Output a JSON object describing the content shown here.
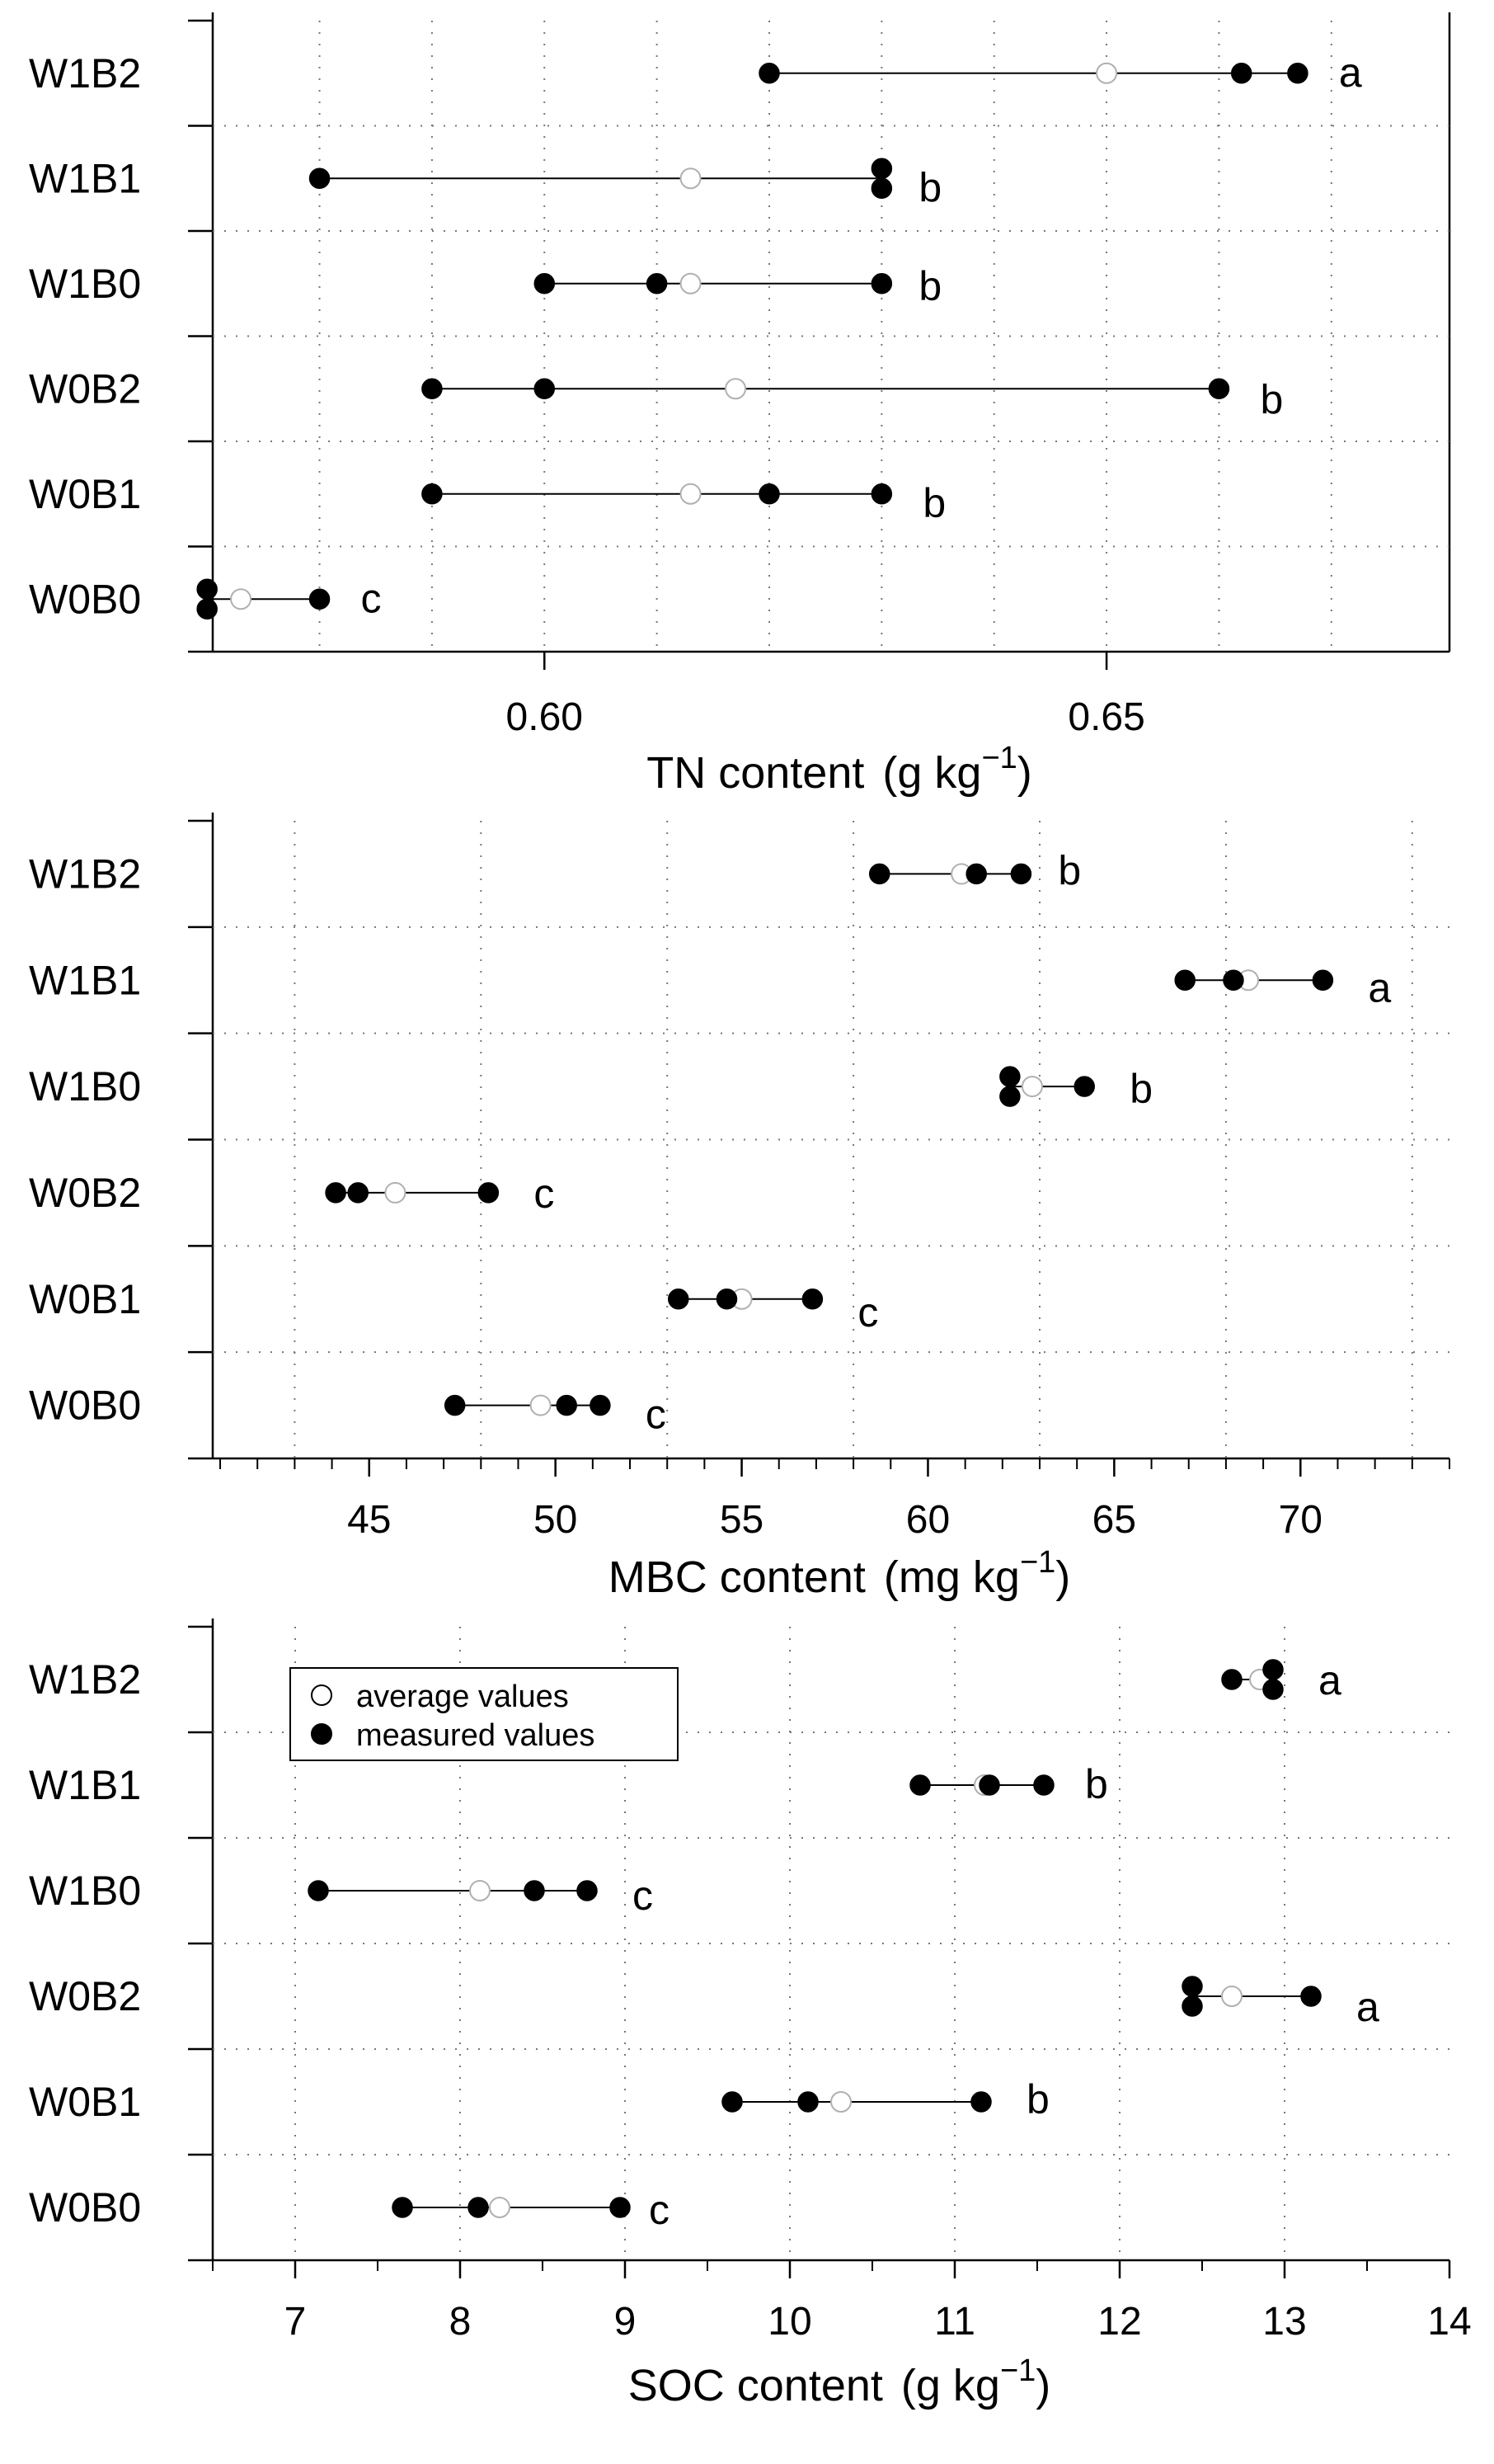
{
  "colors": {
    "ink": "#000000",
    "measured_fill": "#000000",
    "average_fill": "#ffffff",
    "average_stroke": "#b0b0b0",
    "grid": "#777777",
    "background": "#ffffff"
  },
  "legend": {
    "average_label": "average values",
    "measured_label": "measured values"
  },
  "chart_data": [
    {
      "type": "dot-range",
      "xlabel": "TN content",
      "xunit_prefix": "(g kg",
      "xunit_exp": "−1",
      "xunit_suffix": ")",
      "xlim": [
        0.5705,
        0.6805
      ],
      "xticks": [
        0.6,
        0.65
      ],
      "xtick_labels": [
        "0.60",
        "0.65"
      ],
      "minor_step": null,
      "grid_x": [
        0.58,
        0.59,
        0.6,
        0.61,
        0.62,
        0.63,
        0.64,
        0.65,
        0.66,
        0.67
      ],
      "legend": false,
      "rows": [
        {
          "label": "W1B2",
          "measured": [
            0.62,
            0.662,
            0.667
          ],
          "average": 0.65,
          "letter": "a"
        },
        {
          "label": "W1B1",
          "measured": [
            0.58,
            0.63,
            0.63
          ],
          "average": 0.613,
          "letter": "b"
        },
        {
          "label": "W1B0",
          "measured": [
            0.6,
            0.61,
            0.63
          ],
          "average": 0.613,
          "letter": "b"
        },
        {
          "label": "W0B2",
          "measured": [
            0.59,
            0.6,
            0.66
          ],
          "average": 0.617,
          "letter": "b"
        },
        {
          "label": "W0B1",
          "measured": [
            0.59,
            0.62,
            0.63
          ],
          "average": 0.613,
          "letter": "b"
        },
        {
          "label": "W0B0",
          "measured": [
            0.57,
            0.57,
            0.58
          ],
          "average": 0.573,
          "letter": "c"
        }
      ]
    },
    {
      "type": "dot-range",
      "xlabel": "MBC content",
      "xunit_prefix": "(mg kg",
      "xunit_exp": "−1",
      "xunit_suffix": ")",
      "xlim": [
        40.8,
        74.0
      ],
      "xticks": [
        45,
        50,
        55,
        60,
        65,
        70
      ],
      "xtick_labels": [
        "45",
        "50",
        "55",
        "60",
        "65",
        "70"
      ],
      "minor_step": 1,
      "grid_x": [
        43,
        48,
        53,
        58,
        63,
        68,
        73
      ],
      "legend": false,
      "rows": [
        {
          "label": "W1B2",
          "measured": [
            58.7,
            61.3,
            62.5
          ],
          "average": 60.9,
          "letter": "b"
        },
        {
          "label": "W1B1",
          "measured": [
            66.9,
            68.2,
            70.6
          ],
          "average": 68.6,
          "letter": "a"
        },
        {
          "label": "W1B0",
          "measured": [
            62.2,
            62.2,
            64.2
          ],
          "average": 62.8,
          "letter": "b"
        },
        {
          "label": "W0B2",
          "measured": [
            44.1,
            44.7,
            48.2
          ],
          "average": 45.7,
          "letter": "c"
        },
        {
          "label": "W0B1",
          "measured": [
            53.3,
            54.6,
            56.9
          ],
          "average": 55.0,
          "letter": "c"
        },
        {
          "label": "W0B0",
          "measured": [
            47.3,
            50.3,
            51.2
          ],
          "average": 49.6,
          "letter": "c"
        }
      ]
    },
    {
      "type": "dot-range",
      "xlabel": "SOC content",
      "xunit_prefix": "(g kg",
      "xunit_exp": "−1",
      "xunit_suffix": ")",
      "xlim": [
        6.5,
        14.0
      ],
      "xticks": [
        7,
        8,
        9,
        10,
        11,
        12,
        13,
        14
      ],
      "xtick_labels": [
        "7",
        "8",
        "9",
        "10",
        "11",
        "12",
        "13",
        "14"
      ],
      "minor_step": 0.5,
      "grid_x": [
        7,
        8,
        9,
        10,
        11,
        12,
        13
      ],
      "legend": true,
      "rows": [
        {
          "label": "W1B2",
          "measured": [
            12.68,
            12.93,
            12.93
          ],
          "average": 12.85,
          "letter": "a"
        },
        {
          "label": "W1B1",
          "measured": [
            10.79,
            11.21,
            11.54
          ],
          "average": 11.18,
          "letter": "b"
        },
        {
          "label": "W1B0",
          "measured": [
            7.14,
            8.45,
            8.77
          ],
          "average": 8.12,
          "letter": "c"
        },
        {
          "label": "W0B2",
          "measured": [
            12.44,
            12.44,
            13.16
          ],
          "average": 12.68,
          "letter": "a"
        },
        {
          "label": "W0B1",
          "measured": [
            9.65,
            10.11,
            11.16
          ],
          "average": 10.31,
          "letter": "b"
        },
        {
          "label": "W0B0",
          "measured": [
            7.65,
            8.11,
            8.97
          ],
          "average": 8.24,
          "letter": "c"
        }
      ]
    }
  ]
}
